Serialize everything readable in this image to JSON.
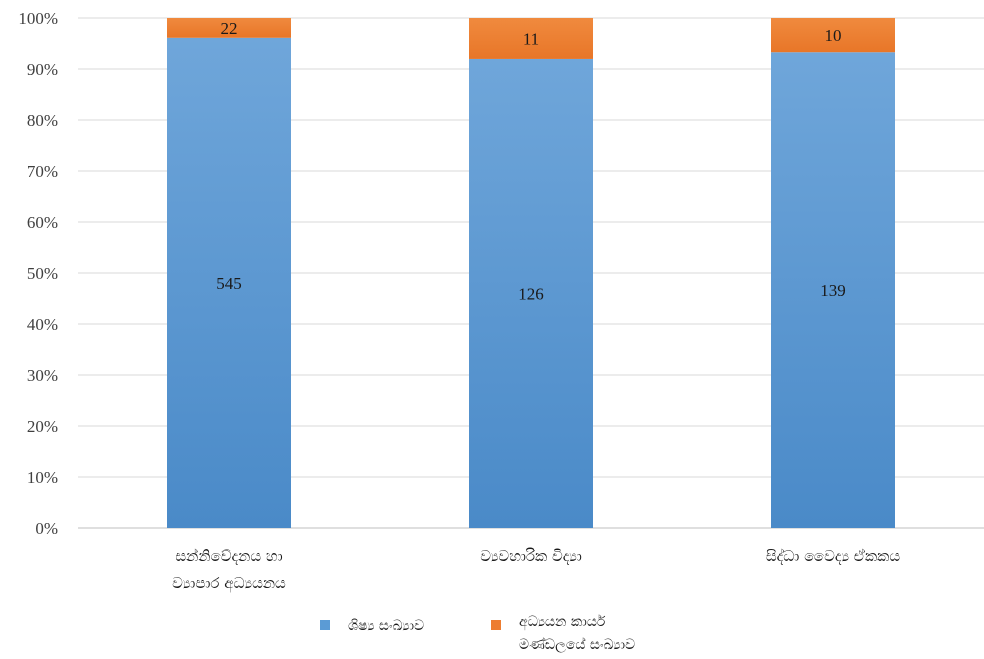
{
  "chart_data": {
    "type": "bar",
    "stacked": "percent",
    "categories": [
      [
        "සන්නිවේදනය හා",
        "ව්‍යාපාර අධ්‍යයනය"
      ],
      [
        "ව්‍යවහාරික විද්‍යා"
      ],
      [
        "සිද්ධා වෛද්‍ය ඒකකය"
      ]
    ],
    "series": [
      {
        "name": "ශිෂ්‍ය සංඛ්‍යාව",
        "values": [
          545,
          126,
          139
        ],
        "color": "#5b9bd5"
      },
      {
        "name": "අධ්‍යයන කාර්ය මණ්ඩලයේ සංඛ්‍යාව",
        "values": [
          22,
          11,
          10
        ],
        "color": "#ed7d31"
      }
    ],
    "y_ticks": [
      "0%",
      "10%",
      "20%",
      "30%",
      "40%",
      "50%",
      "60%",
      "70%",
      "80%",
      "90%",
      "100%"
    ],
    "ylim": [
      0,
      100
    ],
    "grid": true,
    "legend_position": "bottom"
  }
}
